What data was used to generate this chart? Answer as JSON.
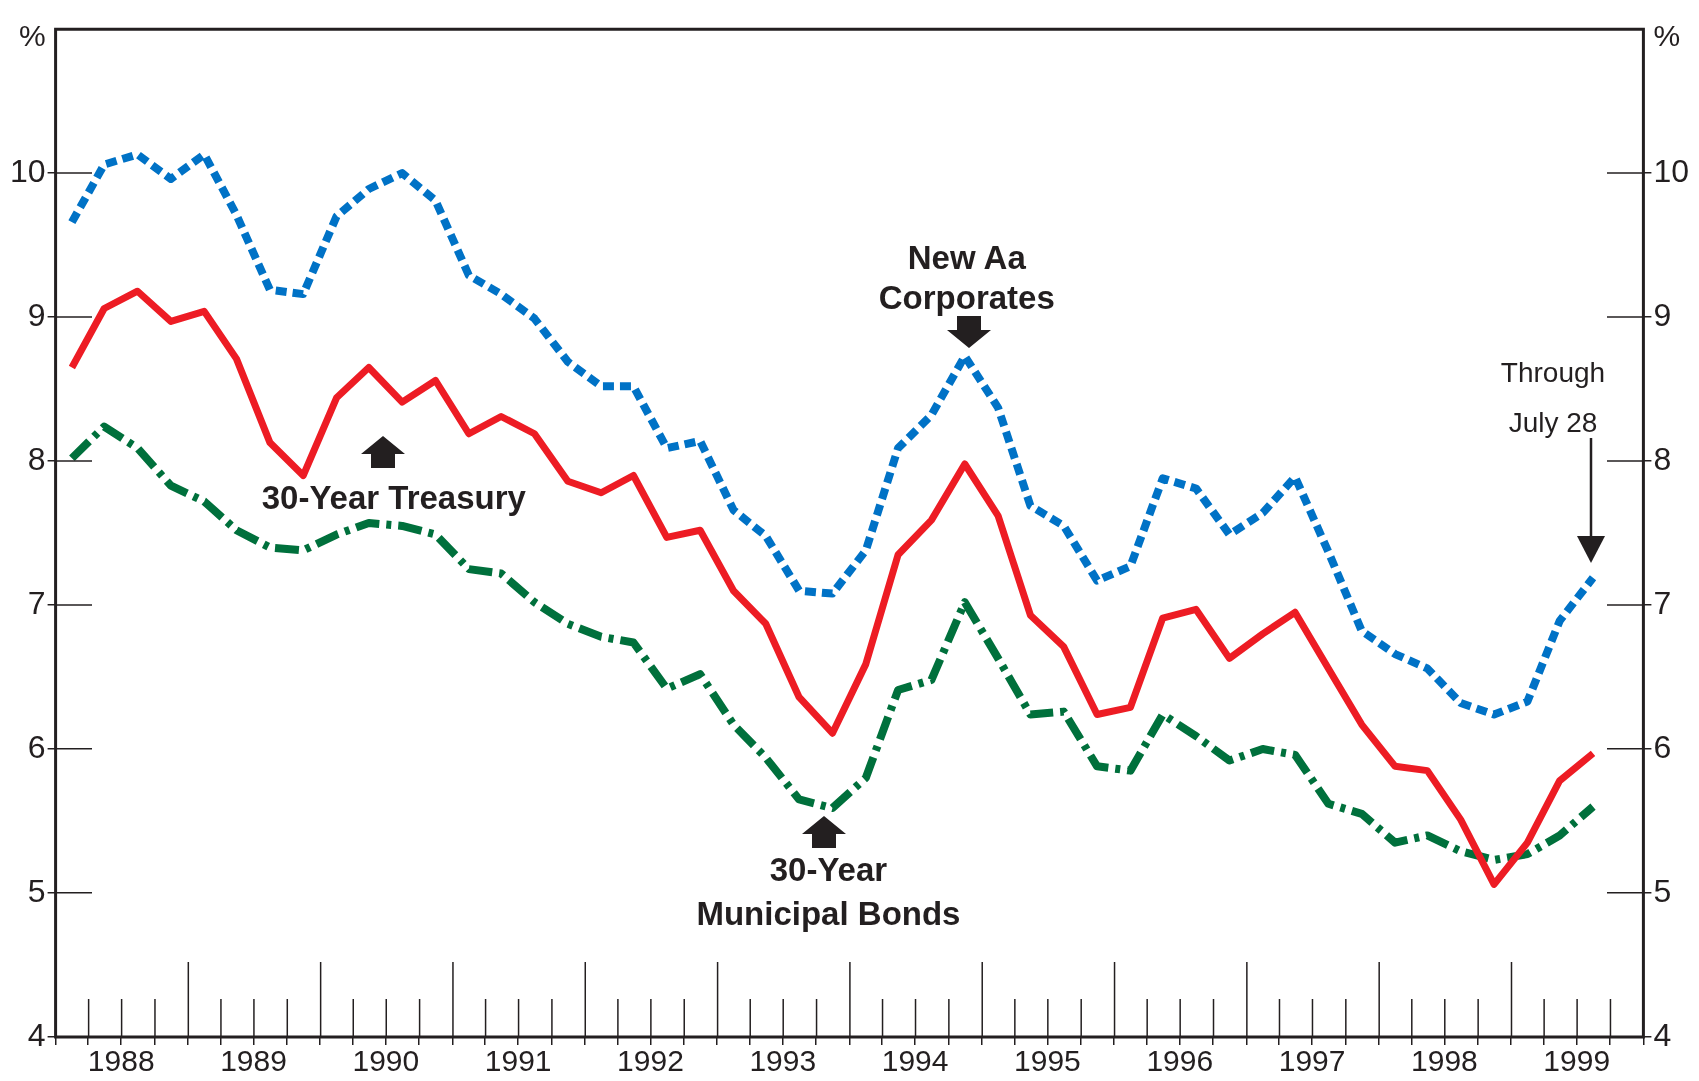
{
  "chart_data": {
    "type": "line",
    "ylabel": "%",
    "y2label": "%",
    "x": [
      "1988-02-15",
      "1988-05-15",
      "1988-08-15",
      "1988-11-15",
      "1989-02-15",
      "1989-05-15",
      "1989-08-15",
      "1989-11-15",
      "1990-02-15",
      "1990-05-15",
      "1990-08-15",
      "1990-11-15",
      "1991-02-15",
      "1991-05-15",
      "1991-08-15",
      "1991-11-15",
      "1992-02-15",
      "1992-05-15",
      "1992-08-15",
      "1992-11-15",
      "1993-02-15",
      "1993-05-15",
      "1993-08-15",
      "1993-11-15",
      "1994-02-15",
      "1994-05-15",
      "1994-08-15",
      "1994-11-15",
      "1995-02-15",
      "1995-05-15",
      "1995-08-15",
      "1995-11-15",
      "1996-02-15",
      "1996-05-15",
      "1996-08-15",
      "1996-11-15",
      "1997-02-15",
      "1997-05-15",
      "1997-08-15",
      "1997-11-15",
      "1998-02-15",
      "1998-05-15",
      "1998-08-15",
      "1998-11-15",
      "1999-02-15",
      "1999-05-15",
      "1999-08-15"
    ],
    "xlim": [
      "1988",
      "2000"
    ],
    "xticks": [
      {
        "value": "1988",
        "label": null
      },
      {
        "value": "1988-04",
        "label": null
      },
      {
        "value": "1988-07",
        "label": "1988"
      },
      {
        "value": "1988-10",
        "label": null
      },
      {
        "value": "1989",
        "label": null
      },
      {
        "value": "1989-04",
        "label": null
      },
      {
        "value": "1989-07",
        "label": "1989"
      },
      {
        "value": "1989-10",
        "label": null
      },
      {
        "value": "1990",
        "label": null
      },
      {
        "value": "1990-04",
        "label": null
      },
      {
        "value": "1990-07",
        "label": "1990"
      },
      {
        "value": "1990-10",
        "label": null
      },
      {
        "value": "1991",
        "label": null
      },
      {
        "value": "1991-04",
        "label": null
      },
      {
        "value": "1991-07",
        "label": "1991"
      },
      {
        "value": "1991-10",
        "label": null
      },
      {
        "value": "1992",
        "label": null
      },
      {
        "value": "1992-04",
        "label": null
      },
      {
        "value": "1992-07",
        "label": "1992"
      },
      {
        "value": "1992-10",
        "label": null
      },
      {
        "value": "1993",
        "label": null
      },
      {
        "value": "1993-04",
        "label": null
      },
      {
        "value": "1993-07",
        "label": "1993"
      },
      {
        "value": "1993-10",
        "label": null
      },
      {
        "value": "1994",
        "label": null
      },
      {
        "value": "1994-04",
        "label": null
      },
      {
        "value": "1994-07",
        "label": "1994"
      },
      {
        "value": "1994-10",
        "label": null
      },
      {
        "value": "1995",
        "label": null
      },
      {
        "value": "1995-04",
        "label": null
      },
      {
        "value": "1995-07",
        "label": "1995"
      },
      {
        "value": "1995-10",
        "label": null
      },
      {
        "value": "1996",
        "label": null
      },
      {
        "value": "1996-04",
        "label": null
      },
      {
        "value": "1996-07",
        "label": "1996"
      },
      {
        "value": "1996-10",
        "label": null
      },
      {
        "value": "1997",
        "label": null
      },
      {
        "value": "1997-04",
        "label": null
      },
      {
        "value": "1997-07",
        "label": "1997"
      },
      {
        "value": "1997-10",
        "label": null
      },
      {
        "value": "1998",
        "label": null
      },
      {
        "value": "1998-04",
        "label": null
      },
      {
        "value": "1998-07",
        "label": "1998"
      },
      {
        "value": "1998-10",
        "label": null
      },
      {
        "value": "1999",
        "label": null
      },
      {
        "value": "1999-04",
        "label": null
      },
      {
        "value": "1999-07",
        "label": "1999"
      },
      {
        "value": "1999-10",
        "label": null
      },
      {
        "value": "2000",
        "label": null
      }
    ],
    "ylim": [
      4,
      11
    ],
    "yticks": [
      4,
      5,
      6,
      7,
      8,
      9,
      10
    ],
    "y2lim": [
      4,
      11
    ],
    "y2ticks": [
      4,
      5,
      6,
      7,
      8,
      9,
      10
    ],
    "grid": false,
    "legend": false,
    "series": [
      {
        "name": "New Aa Corporates",
        "color": "#0072c6",
        "line_style": "dotted",
        "values": [
          9.66,
          10.06,
          10.13,
          9.96,
          10.13,
          9.71,
          9.19,
          9.16,
          9.7,
          9.89,
          10.0,
          9.81,
          9.29,
          9.16,
          8.99,
          8.69,
          8.52,
          8.52,
          8.09,
          8.14,
          7.66,
          7.48,
          7.1,
          7.08,
          7.38,
          8.09,
          8.32,
          8.73,
          8.37,
          7.69,
          7.55,
          7.17,
          7.27,
          7.88,
          7.81,
          7.49,
          7.64,
          7.89,
          7.37,
          6.82,
          6.66,
          6.56,
          6.32,
          6.24,
          6.33,
          6.89,
          7.19
        ]
      },
      {
        "name": "30-Year Treasury",
        "color": "#ed1c24",
        "line_style": "solid",
        "values": [
          8.65,
          9.06,
          9.18,
          8.97,
          9.04,
          8.71,
          8.13,
          7.9,
          8.44,
          8.65,
          8.41,
          8.56,
          8.19,
          8.31,
          8.19,
          7.86,
          7.78,
          7.9,
          7.47,
          7.52,
          7.1,
          6.87,
          6.36,
          6.11,
          6.59,
          7.35,
          7.59,
          7.98,
          7.62,
          6.93,
          6.71,
          6.24,
          6.29,
          6.91,
          6.97,
          6.63,
          6.8,
          6.95,
          6.56,
          6.17,
          5.88,
          5.85,
          5.51,
          5.06,
          5.35,
          5.78,
          5.97
        ]
      },
      {
        "name": "30-Year Municipal Bonds",
        "color": "#00703c",
        "line_style": "dashed",
        "values": [
          8.02,
          8.24,
          8.09,
          7.83,
          7.72,
          7.52,
          7.4,
          7.38,
          7.49,
          7.57,
          7.55,
          7.49,
          7.25,
          7.22,
          7.02,
          6.87,
          6.78,
          6.74,
          6.42,
          6.52,
          6.17,
          5.94,
          5.65,
          5.59,
          5.8,
          6.41,
          6.48,
          7.02,
          6.63,
          6.24,
          6.26,
          5.88,
          5.85,
          6.24,
          6.09,
          5.92,
          6.0,
          5.96,
          5.62,
          5.55,
          5.35,
          5.4,
          5.29,
          5.23,
          5.27,
          5.4,
          5.6
        ]
      }
    ],
    "annotations": [
      "Through July 28"
    ]
  }
}
